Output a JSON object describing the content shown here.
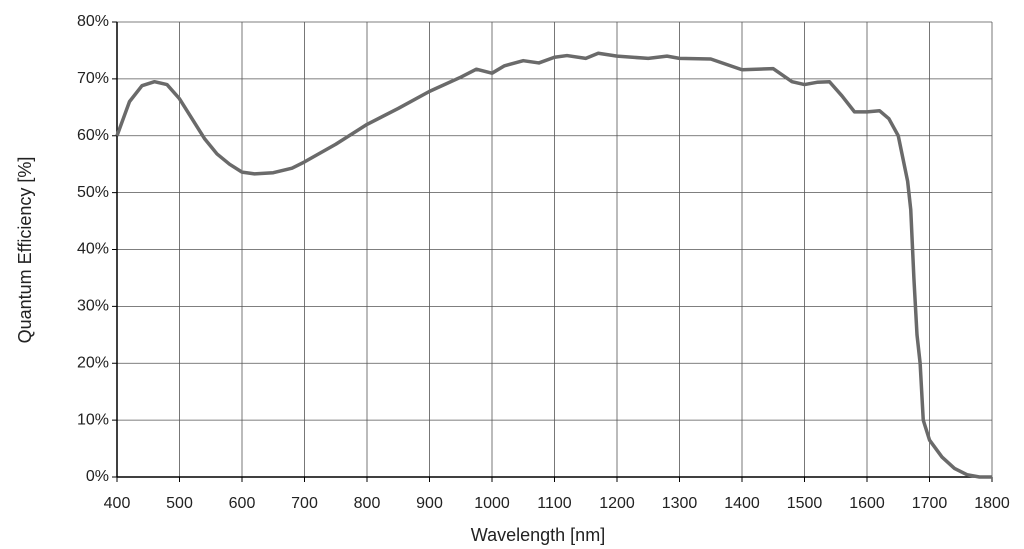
{
  "chart_data": {
    "type": "line",
    "x_label": "Wavelength [nm]",
    "y_label": "Quantum Efficiency [%]",
    "x": [
      400,
      410,
      420,
      440,
      460,
      480,
      500,
      520,
      540,
      560,
      580,
      600,
      620,
      650,
      680,
      700,
      750,
      800,
      850,
      900,
      950,
      975,
      1000,
      1020,
      1050,
      1075,
      1100,
      1120,
      1150,
      1170,
      1200,
      1250,
      1280,
      1300,
      1350,
      1400,
      1450,
      1480,
      1500,
      1520,
      1540,
      1560,
      1580,
      1600,
      1620,
      1635,
      1650,
      1665,
      1670,
      1675,
      1680,
      1685,
      1690,
      1700,
      1720,
      1740,
      1760,
      1780,
      1800
    ],
    "series": [
      {
        "color": "#6a6a6a",
        "values": [
          60,
          63,
          66,
          68.8,
          69.5,
          69,
          66.5,
          63,
          59.5,
          56.8,
          55,
          53.6,
          53.3,
          53.5,
          54.3,
          55.4,
          58.5,
          62,
          64.8,
          67.8,
          70.3,
          71.7,
          71,
          72.3,
          73.2,
          72.8,
          73.8,
          74.1,
          73.6,
          74.5,
          74,
          73.6,
          74,
          73.6,
          73.5,
          71.6,
          71.8,
          69.5,
          69,
          69.4,
          69.5,
          67,
          64.2,
          64.2,
          64.4,
          63,
          60,
          52,
          47,
          35,
          25,
          20,
          10,
          6.5,
          3.5,
          1.5,
          0.4,
          0,
          0
        ]
      }
    ],
    "xlim": [
      400,
      1800
    ],
    "ylim": [
      0,
      80
    ],
    "xticks": [
      400,
      500,
      600,
      700,
      800,
      900,
      1000,
      1100,
      1200,
      1300,
      1400,
      1500,
      1600,
      1700,
      1800
    ],
    "yticks": [
      {
        "value": 0,
        "label": "0%"
      },
      {
        "value": 10,
        "label": "10%"
      },
      {
        "value": 20,
        "label": "20%"
      },
      {
        "value": 30,
        "label": "30%"
      },
      {
        "value": 40,
        "label": "40%"
      },
      {
        "value": 50,
        "label": "50%"
      },
      {
        "value": 60,
        "label": "60%"
      },
      {
        "value": 70,
        "label": "70%"
      },
      {
        "value": 80,
        "label": "80%"
      }
    ],
    "grid": true
  }
}
